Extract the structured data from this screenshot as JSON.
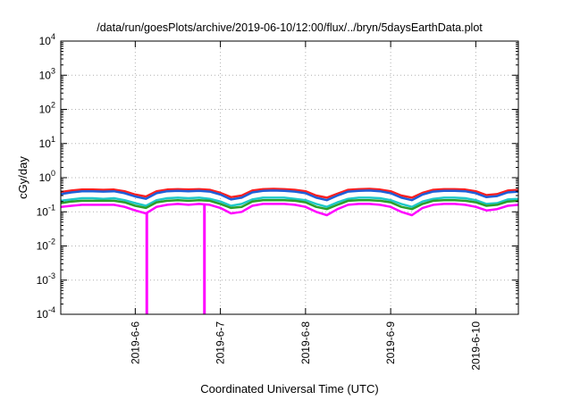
{
  "chart_data": {
    "type": "line",
    "title": "/data/run/goesPlots/archive/2019-06-10/12:00/flux/../bryn/5daysEarthData.plot",
    "xlabel": "Coordinated Universal Time (UTC)",
    "ylabel": "cGy/day",
    "yscale": "log",
    "ylim": [
      0.0001,
      10000
    ],
    "xlim": [
      "2019-06-05 03:00",
      "2019-06-10 12:00"
    ],
    "grid": true,
    "legend": "none",
    "yticks": [
      {
        "base": "10",
        "exp": "4"
      },
      {
        "base": "10",
        "exp": "3"
      },
      {
        "base": "10",
        "exp": "2"
      },
      {
        "base": "10",
        "exp": "1"
      },
      {
        "base": "10",
        "exp": "0"
      },
      {
        "base": "10",
        "exp": "-1"
      },
      {
        "base": "10",
        "exp": "-2"
      },
      {
        "base": "10",
        "exp": "-3"
      },
      {
        "base": "10",
        "exp": "-4"
      }
    ],
    "xticks": [
      "2019-6-6",
      "2019-6-7",
      "2019-6-8",
      "2019-6-9",
      "2019-6-10"
    ],
    "x": [
      "2019-06-05 03:00",
      "2019-06-05 06:00",
      "2019-06-05 09:00",
      "2019-06-05 12:00",
      "2019-06-05 15:00",
      "2019-06-05 18:00",
      "2019-06-05 21:00",
      "2019-06-06 00:00",
      "2019-06-06 03:00",
      "2019-06-06 06:00",
      "2019-06-06 09:00",
      "2019-06-06 12:00",
      "2019-06-06 15:00",
      "2019-06-06 18:00",
      "2019-06-06 21:00",
      "2019-06-07 00:00",
      "2019-06-07 03:00",
      "2019-06-07 06:00",
      "2019-06-07 09:00",
      "2019-06-07 12:00",
      "2019-06-07 15:00",
      "2019-06-07 18:00",
      "2019-06-07 21:00",
      "2019-06-08 00:00",
      "2019-06-08 03:00",
      "2019-06-08 06:00",
      "2019-06-08 09:00",
      "2019-06-08 12:00",
      "2019-06-08 15:00",
      "2019-06-08 18:00",
      "2019-06-08 21:00",
      "2019-06-09 00:00",
      "2019-06-09 03:00",
      "2019-06-09 06:00",
      "2019-06-09 09:00",
      "2019-06-09 12:00",
      "2019-06-09 15:00",
      "2019-06-09 18:00",
      "2019-06-09 21:00",
      "2019-06-10 00:00",
      "2019-06-10 03:00",
      "2019-06-10 06:00",
      "2019-06-10 09:00",
      "2019-06-10 12:00"
    ],
    "series": [
      {
        "color": "#ff2020",
        "values": [
          0.38,
          0.42,
          0.45,
          0.45,
          0.44,
          0.45,
          0.4,
          0.32,
          0.28,
          0.4,
          0.45,
          0.46,
          0.45,
          0.46,
          0.44,
          0.36,
          0.27,
          0.3,
          0.42,
          0.46,
          0.47,
          0.46,
          0.44,
          0.4,
          0.3,
          0.26,
          0.34,
          0.44,
          0.46,
          0.47,
          0.45,
          0.4,
          0.3,
          0.26,
          0.36,
          0.44,
          0.46,
          0.46,
          0.45,
          0.4,
          0.31,
          0.33,
          0.42,
          0.44
        ]
      },
      {
        "color": "#1e5fd8",
        "values": [
          0.33,
          0.37,
          0.4,
          0.4,
          0.39,
          0.4,
          0.35,
          0.28,
          0.24,
          0.35,
          0.4,
          0.41,
          0.4,
          0.41,
          0.39,
          0.32,
          0.23,
          0.26,
          0.37,
          0.41,
          0.42,
          0.41,
          0.39,
          0.35,
          0.26,
          0.22,
          0.3,
          0.39,
          0.41,
          0.42,
          0.4,
          0.35,
          0.26,
          0.22,
          0.32,
          0.39,
          0.41,
          0.41,
          0.4,
          0.35,
          0.27,
          0.29,
          0.37,
          0.39
        ]
      },
      {
        "color": "#20c8c8",
        "values": [
          0.21,
          0.23,
          0.25,
          0.25,
          0.24,
          0.25,
          0.22,
          0.18,
          0.15,
          0.22,
          0.25,
          0.26,
          0.25,
          0.26,
          0.24,
          0.2,
          0.15,
          0.17,
          0.23,
          0.26,
          0.26,
          0.26,
          0.24,
          0.22,
          0.17,
          0.14,
          0.19,
          0.24,
          0.26,
          0.26,
          0.25,
          0.22,
          0.17,
          0.14,
          0.2,
          0.24,
          0.26,
          0.26,
          0.25,
          0.22,
          0.17,
          0.18,
          0.23,
          0.24
        ]
      },
      {
        "color": "#2aa02a",
        "values": [
          0.18,
          0.2,
          0.21,
          0.21,
          0.21,
          0.21,
          0.19,
          0.15,
          0.13,
          0.19,
          0.21,
          0.22,
          0.21,
          0.22,
          0.21,
          0.17,
          0.13,
          0.14,
          0.2,
          0.22,
          0.22,
          0.22,
          0.21,
          0.19,
          0.14,
          0.12,
          0.16,
          0.21,
          0.22,
          0.22,
          0.21,
          0.19,
          0.14,
          0.12,
          0.17,
          0.21,
          0.22,
          0.22,
          0.21,
          0.19,
          0.15,
          0.16,
          0.2,
          0.21
        ]
      },
      {
        "color": "#ff00ff",
        "values": [
          0.14,
          0.15,
          0.16,
          0.16,
          0.16,
          0.16,
          0.14,
          0.11,
          0.09,
          0.14,
          0.16,
          0.17,
          0.16,
          0.17,
          0.16,
          0.13,
          0.09,
          0.1,
          0.15,
          0.17,
          0.17,
          0.17,
          0.16,
          0.14,
          0.1,
          0.08,
          0.12,
          0.16,
          0.17,
          0.17,
          0.16,
          0.14,
          0.1,
          0.08,
          0.13,
          0.16,
          0.17,
          0.17,
          0.16,
          0.14,
          0.11,
          0.12,
          0.15,
          0.16
        ]
      }
    ],
    "dips": [
      {
        "color": "#ff00ff",
        "x": "2019-06-06 03:15",
        "value": 0.0001
      },
      {
        "color": "#ff00ff",
        "x": "2019-06-06 19:30",
        "value": 0.0001
      }
    ]
  }
}
